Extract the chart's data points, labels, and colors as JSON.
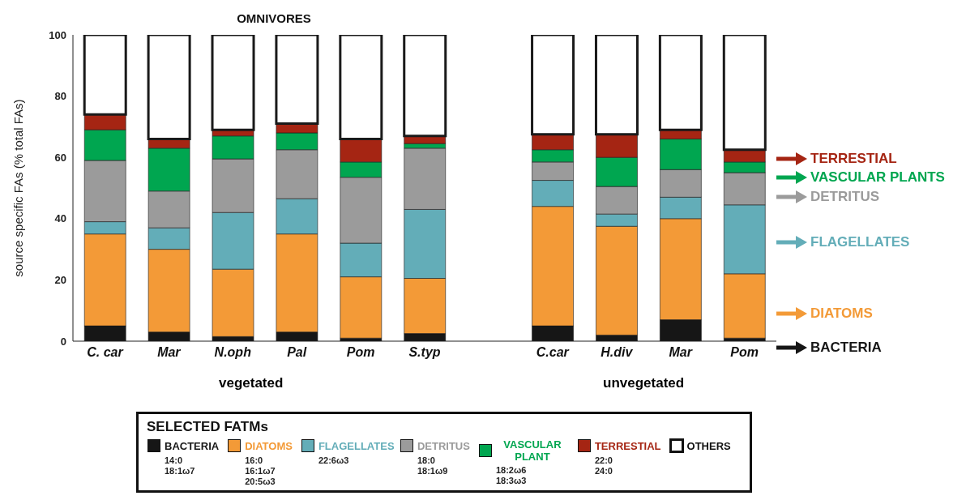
{
  "chart_data": {
    "type": "bar",
    "stacked": true,
    "title": "OMNIVORES",
    "ylabel": "source specific FAs (% total FAs)",
    "legend_title": "SELECTED FATMs",
    "legend": "bottom",
    "categories": [
      "C. car",
      "Mar",
      "N.oph",
      "Pal",
      "Pom",
      "S.typ",
      null,
      "C.car",
      "H.div",
      "Mar",
      "Pom"
    ],
    "ylim": [
      0,
      100
    ],
    "yticks": [
      0,
      20,
      40,
      60,
      80,
      100
    ],
    "series": [
      {
        "name": "BACTERIA",
        "color": "#161616",
        "values": [
          5,
          3,
          1.5,
          3,
          1,
          2.5,
          null,
          5,
          2,
          7,
          1
        ]
      },
      {
        "name": "DIATOMS",
        "color": "#f39a37",
        "values": [
          30,
          27,
          22,
          32,
          20,
          18,
          null,
          39,
          35.5,
          33,
          21
        ]
      },
      {
        "name": "FLAGELLATES",
        "color": "#63adb8",
        "values": [
          4,
          7,
          18.5,
          11.5,
          11,
          22.5,
          null,
          8.5,
          4,
          7,
          22.5
        ]
      },
      {
        "name": "DETRITUS",
        "color": "#9b9b9b",
        "values": [
          20,
          12,
          17.5,
          16,
          21.5,
          20,
          null,
          6,
          9,
          9,
          10.5
        ]
      },
      {
        "name": "VASCULAR PLANT",
        "color": "#00a650",
        "values": [
          10,
          14,
          7.5,
          5.5,
          5,
          1.5,
          null,
          4,
          9.5,
          10,
          3.5
        ]
      },
      {
        "name": "TERRESTIAL",
        "color": "#a52513",
        "values": [
          5,
          3,
          2,
          3,
          7.5,
          2.5,
          null,
          5,
          7.5,
          3,
          4
        ]
      },
      {
        "name": "OTHERS",
        "color": "#ffffff",
        "values": [
          26,
          34,
          31,
          29,
          34,
          33,
          null,
          32.5,
          32.5,
          31,
          37.5
        ]
      }
    ],
    "annotations": [
      "vegetated",
      "unvegetated",
      "TERRESTIAL",
      "VASCULAR PLANTS",
      "DETRITUS",
      "FLAGELLATES",
      "DIATOMS",
      "BACTERIA",
      "14:0\n18:1ω7",
      "16:0\n16:1ω7\n20:5ω3",
      "22:6ω3",
      "18:0\n18:1ω9",
      "18:2ω6\n18:3ω3",
      "22:0\n24:0"
    ]
  }
}
